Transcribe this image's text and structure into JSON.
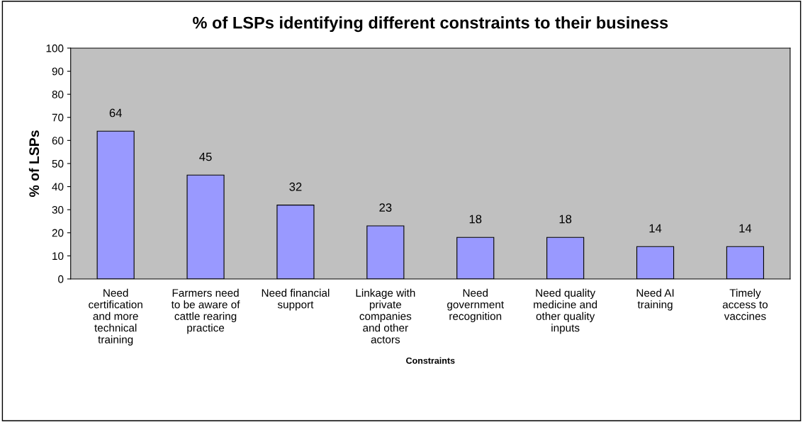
{
  "chart_data": {
    "type": "bar",
    "title": "% of LSPs identifying different constraints to their business",
    "xlabel": "Constraints",
    "ylabel": "% of LSPs",
    "categories": [
      "Need\ncertification\nand more\ntechnical\ntraining",
      "Farmers need\nto be aware of\ncattle rearing\npractice",
      "Need financial\nsupport",
      "Linkage with\nprivate\ncompanies\nand other\nactors",
      "Need\ngovernment\nrecognition",
      "Need quality\nmedicine and\nother quality\ninputs",
      "Need AI\ntraining",
      "Timely\naccess to\nvaccines"
    ],
    "values": [
      64,
      45,
      32,
      23,
      18,
      18,
      14,
      14
    ],
    "color": "#9999ff",
    "ylim": [
      0,
      100
    ],
    "yticks": [
      0,
      10,
      20,
      30,
      40,
      50,
      60,
      70,
      80,
      90,
      100
    ],
    "data_labels": true,
    "grid": false,
    "legend": false
  }
}
